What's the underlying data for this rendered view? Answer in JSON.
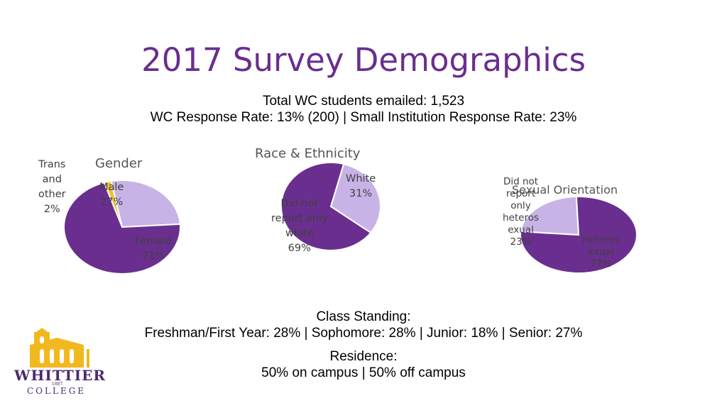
{
  "title": "2017 Survey Demographics",
  "summary": {
    "line1": "Total WC students emailed: 1,523",
    "line2": "WC Response Rate: 13% (200)  |  Small Institution Response Rate: 23%"
  },
  "class_standing": {
    "heading": "Class Standing:",
    "values": "Freshman/First Year: 28%  |  Sophomore: 28%  |  Junior: 18%  |  Senior: 27%"
  },
  "residence": {
    "heading": "Residence:",
    "values": "50% on campus | 50% off campus"
  },
  "logo": {
    "name": "WHITTIER",
    "sub": "COLLEGE",
    "year": "1887"
  },
  "colors": {
    "title": "#6a2e8f",
    "dark_purple": "#6a2e8f",
    "light_purple": "#c8b3e6",
    "gold": "#f2c12e"
  },
  "chart_data": [
    {
      "type": "pie",
      "title": "Gender",
      "slices": [
        {
          "label_lines": [
            "Trans",
            "and",
            "other",
            "2%"
          ],
          "value": 2,
          "color": "#f2c12e"
        },
        {
          "label_lines": [
            "Male",
            "27%"
          ],
          "value": 27,
          "color": "#c8b3e6"
        },
        {
          "label_lines": [
            "Female",
            "71%"
          ],
          "value": 71,
          "color": "#6a2e8f"
        }
      ]
    },
    {
      "type": "pie",
      "title": "Race & Ethnicity",
      "slices": [
        {
          "label_lines": [
            "White",
            "31%"
          ],
          "value": 31,
          "color": "#c8b3e6"
        },
        {
          "label_lines": [
            "Did not",
            "report only",
            "white",
            "69%"
          ],
          "value": 69,
          "color": "#6a2e8f"
        }
      ]
    },
    {
      "type": "pie",
      "title": "Sexual Orientation",
      "slices": [
        {
          "label_lines": [
            "Did not",
            "report",
            "only",
            "heteros",
            "exual",
            "23%"
          ],
          "value": 23,
          "color": "#c8b3e6"
        },
        {
          "label_lines": [
            "Heteros",
            "exual",
            "77%"
          ],
          "value": 77,
          "color": "#6a2e8f"
        }
      ]
    }
  ]
}
